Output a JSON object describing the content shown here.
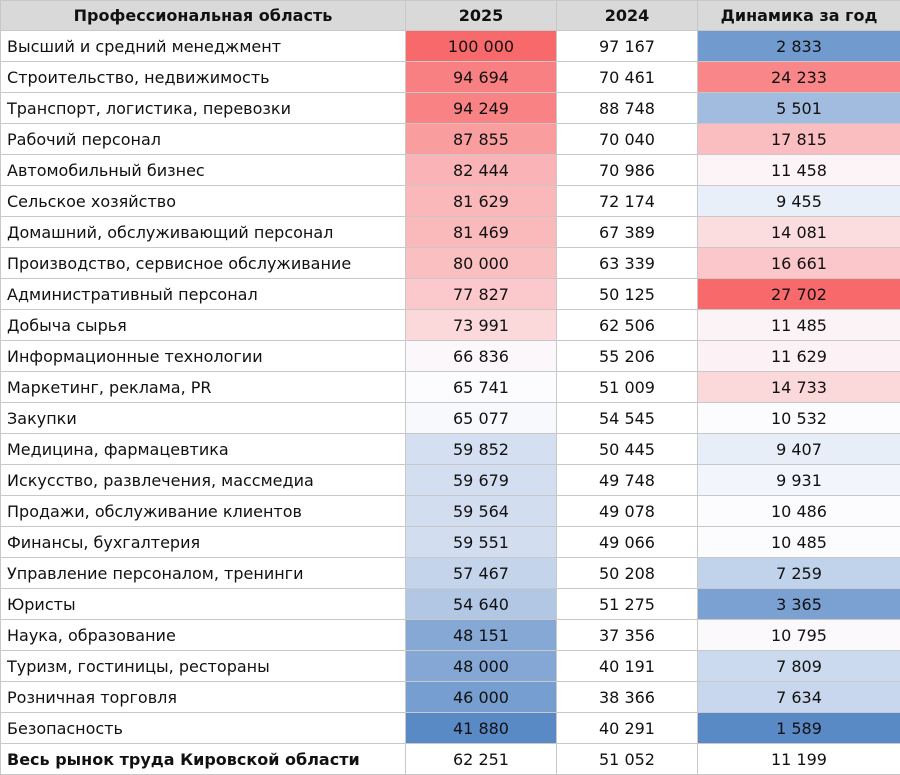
{
  "header": {
    "col_name": "Профессиональная область",
    "col_2025": "2025",
    "col_2024": "2024",
    "col_dynamic": "Динамика за год"
  },
  "colors": {
    "high": "#f8696b",
    "mid": "#fcfcff",
    "low": "#5a8ac6"
  },
  "rows": [
    {
      "name": "Высший и средний менеджмент",
      "v2025": "100 000",
      "v2024": "97 167",
      "dyn": "2 833"
    },
    {
      "name": "Строительство, недвижимость",
      "v2025": "94 694",
      "v2024": "70 461",
      "dyn": "24 233"
    },
    {
      "name": "Транспорт, логистика, перевозки",
      "v2025": "94 249",
      "v2024": "88 748",
      "dyn": "5 501"
    },
    {
      "name": "Рабочий персонал",
      "v2025": "87 855",
      "v2024": "70 040",
      "dyn": "17 815"
    },
    {
      "name": "Автомобильный бизнес",
      "v2025": "82 444",
      "v2024": "70 986",
      "dyn": "11 458"
    },
    {
      "name": "Сельское хозяйство",
      "v2025": "81 629",
      "v2024": "72 174",
      "dyn": "9 455"
    },
    {
      "name": "Домашний, обслуживающий персонал",
      "v2025": "81 469",
      "v2024": "67 389",
      "dyn": "14 081"
    },
    {
      "name": "Производство, сервисное обслуживание",
      "v2025": "80 000",
      "v2024": "63 339",
      "dyn": "16 661"
    },
    {
      "name": "Административный персонал",
      "v2025": "77 827",
      "v2024": "50 125",
      "dyn": "27 702"
    },
    {
      "name": "Добыча сырья",
      "v2025": "73 991",
      "v2024": "62 506",
      "dyn": "11 485"
    },
    {
      "name": "Информационные технологии",
      "v2025": "66 836",
      "v2024": "55 206",
      "dyn": "11 629"
    },
    {
      "name": "Маркетинг, реклама, PR",
      "v2025": "65 741",
      "v2024": "51 009",
      "dyn": "14 733"
    },
    {
      "name": "Закупки",
      "v2025": "65 077",
      "v2024": "54 545",
      "dyn": "10 532"
    },
    {
      "name": "Медицина, фармацевтика",
      "v2025": "59 852",
      "v2024": "50 445",
      "dyn": "9 407"
    },
    {
      "name": "Искусство, развлечения, массмедиа",
      "v2025": "59 679",
      "v2024": "49 748",
      "dyn": "9 931"
    },
    {
      "name": "Продажи, обслуживание клиентов",
      "v2025": "59 564",
      "v2024": "49 078",
      "dyn": "10 486"
    },
    {
      "name": "Финансы, бухгалтерия",
      "v2025": "59 551",
      "v2024": "49 066",
      "dyn": "10 485"
    },
    {
      "name": "Управление персоналом, тренинги",
      "v2025": "57 467",
      "v2024": "50 208",
      "dyn": "7 259"
    },
    {
      "name": "Юристы",
      "v2025": "54 640",
      "v2024": "51 275",
      "dyn": "3 365"
    },
    {
      "name": "Наука, образование",
      "v2025": "48 151",
      "v2024": "37 356",
      "dyn": "10 795"
    },
    {
      "name": "Туризм, гостиницы, рестораны",
      "v2025": "48 000",
      "v2024": "40 191",
      "dyn": "7 809"
    },
    {
      "name": "Розничная торговля",
      "v2025": "46 000",
      "v2024": "38 366",
      "dyn": "7 634"
    },
    {
      "name": "Безопасность",
      "v2025": "41 880",
      "v2024": "40 291",
      "dyn": "1 589"
    }
  ],
  "total": {
    "name": "Весь рынок труда Кировской области",
    "v2025": "62 251",
    "v2024": "51 052",
    "dyn": "11 199"
  }
}
